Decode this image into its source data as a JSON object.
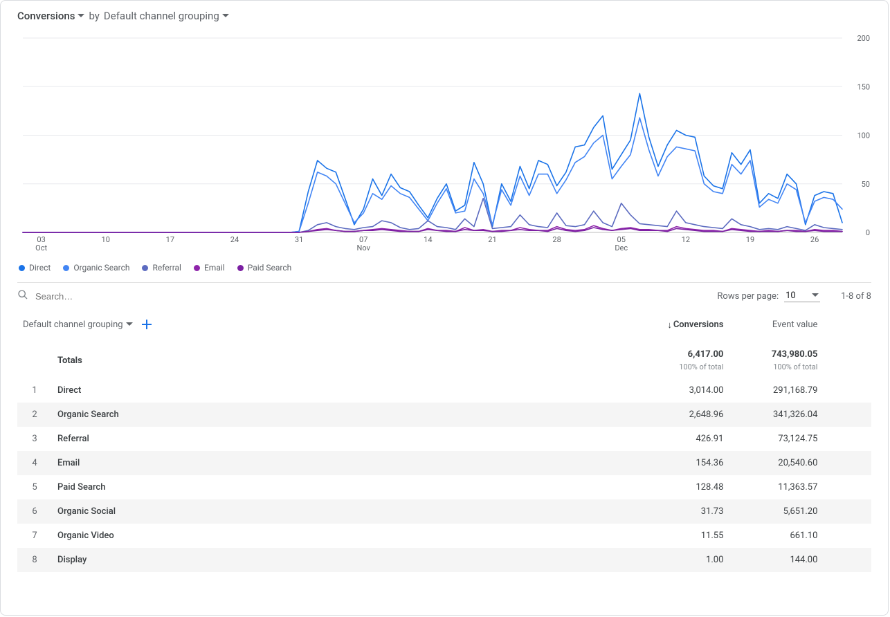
{
  "header": {
    "metric_label": "Conversions",
    "by_label": "by",
    "dimension_label": "Default channel grouping"
  },
  "chart": {
    "type": "line",
    "y_axis": {
      "min": 0,
      "max": 200,
      "ticks": [
        0,
        50,
        100,
        150,
        200
      ]
    },
    "grid_color": "#e8eaed",
    "axis_text_color": "#5f6368",
    "x_axis": {
      "start_index": 0,
      "end_index": 89,
      "ticks": [
        {
          "i": 2,
          "label": "03",
          "sublabel": "Oct"
        },
        {
          "i": 9,
          "label": "10"
        },
        {
          "i": 16,
          "label": "17"
        },
        {
          "i": 23,
          "label": "24"
        },
        {
          "i": 30,
          "label": "31"
        },
        {
          "i": 37,
          "label": "07",
          "sublabel": "Nov"
        },
        {
          "i": 44,
          "label": "14"
        },
        {
          "i": 51,
          "label": "21"
        },
        {
          "i": 58,
          "label": "28"
        },
        {
          "i": 65,
          "label": "05",
          "sublabel": "Dec"
        },
        {
          "i": 72,
          "label": "12"
        },
        {
          "i": 79,
          "label": "19"
        },
        {
          "i": 86,
          "label": "26"
        }
      ]
    },
    "series": [
      {
        "name": "Direct",
        "color": "#1a73e8",
        "values": [
          0,
          0,
          0,
          0,
          0,
          0,
          0,
          0,
          0,
          0,
          0,
          0,
          0,
          0,
          0,
          0,
          0,
          0,
          0,
          0,
          0,
          0,
          0,
          0,
          0,
          0,
          0,
          0,
          0,
          0,
          1,
          42,
          74,
          66,
          62,
          35,
          8,
          24,
          55,
          38,
          60,
          46,
          42,
          28,
          15,
          35,
          50,
          22,
          28,
          72,
          50,
          6,
          50,
          32,
          68,
          45,
          74,
          70,
          48,
          62,
          88,
          90,
          108,
          120,
          65,
          80,
          95,
          143,
          98,
          68,
          90,
          105,
          100,
          98,
          58,
          48,
          45,
          82,
          70,
          85,
          30,
          40,
          35,
          60,
          50,
          8,
          38,
          42,
          40,
          10
        ]
      },
      {
        "name": "Organic Search",
        "color": "#4285f4",
        "values": [
          0,
          0,
          0,
          0,
          0,
          0,
          0,
          0,
          0,
          0,
          0,
          0,
          0,
          0,
          0,
          0,
          0,
          0,
          0,
          0,
          0,
          0,
          0,
          0,
          0,
          0,
          0,
          0,
          0,
          0,
          1,
          30,
          62,
          58,
          50,
          30,
          10,
          20,
          40,
          34,
          48,
          40,
          36,
          24,
          12,
          30,
          45,
          20,
          22,
          55,
          40,
          8,
          44,
          28,
          58,
          38,
          60,
          60,
          40,
          54,
          72,
          78,
          92,
          100,
          55,
          68,
          80,
          118,
          85,
          58,
          78,
          88,
          86,
          84,
          50,
          42,
          40,
          70,
          60,
          74,
          26,
          34,
          30,
          50,
          44,
          10,
          32,
          36,
          34,
          24
        ]
      },
      {
        "name": "Referral",
        "color": "#5c6bc0",
        "values": [
          0,
          0,
          0,
          0,
          0,
          0,
          0,
          0,
          0,
          0,
          0,
          0,
          0,
          0,
          0,
          0,
          0,
          0,
          0,
          0,
          0,
          0,
          0,
          0,
          0,
          0,
          0,
          0,
          0,
          0,
          0,
          2,
          8,
          10,
          6,
          4,
          3,
          5,
          6,
          12,
          10,
          5,
          3,
          4,
          12,
          6,
          5,
          3,
          14,
          6,
          35,
          4,
          5,
          6,
          18,
          8,
          6,
          5,
          20,
          7,
          6,
          8,
          22,
          10,
          6,
          30,
          18,
          9,
          8,
          7,
          6,
          22,
          10,
          8,
          6,
          5,
          4,
          14,
          8,
          6,
          3,
          4,
          3,
          6,
          4,
          2,
          8,
          5,
          4,
          3
        ]
      },
      {
        "name": "Email",
        "color": "#8e24aa",
        "values": [
          0,
          0,
          0,
          0,
          0,
          0,
          0,
          0,
          0,
          0,
          0,
          0,
          0,
          0,
          0,
          0,
          0,
          0,
          0,
          0,
          0,
          0,
          0,
          0,
          0,
          0,
          0,
          0,
          0,
          0,
          0,
          1,
          3,
          4,
          2,
          1,
          1,
          2,
          3,
          4,
          3,
          2,
          1,
          1,
          4,
          2,
          2,
          1,
          5,
          2,
          3,
          1,
          2,
          2,
          5,
          3,
          2,
          2,
          6,
          3,
          2,
          3,
          7,
          4,
          2,
          4,
          5,
          3,
          3,
          2,
          2,
          6,
          4,
          3,
          2,
          2,
          1,
          4,
          3,
          2,
          1,
          2,
          1,
          2,
          2,
          1,
          3,
          2,
          2,
          1
        ]
      },
      {
        "name": "Paid Search",
        "color": "#7b1fa2",
        "values": [
          0,
          0,
          0,
          0,
          0,
          0,
          0,
          0,
          0,
          0,
          0,
          0,
          0,
          0,
          0,
          0,
          0,
          0,
          0,
          0,
          0,
          0,
          0,
          0,
          0,
          0,
          0,
          0,
          0,
          0,
          0,
          1,
          2,
          3,
          2,
          1,
          1,
          2,
          2,
          3,
          2,
          1,
          1,
          1,
          3,
          2,
          1,
          1,
          3,
          2,
          2,
          1,
          1,
          2,
          3,
          2,
          2,
          1,
          4,
          2,
          1,
          2,
          5,
          3,
          2,
          3,
          4,
          2,
          2,
          2,
          1,
          4,
          3,
          2,
          1,
          1,
          1,
          3,
          2,
          1,
          1,
          1,
          1,
          2,
          1,
          1,
          2,
          1,
          1,
          1
        ]
      }
    ],
    "legend": [
      {
        "label": "Direct",
        "color": "#1a73e8"
      },
      {
        "label": "Organic Search",
        "color": "#4285f4"
      },
      {
        "label": "Referral",
        "color": "#5c6bc0"
      },
      {
        "label": "Email",
        "color": "#8e24aa"
      },
      {
        "label": "Paid Search",
        "color": "#7b1fa2"
      }
    ]
  },
  "toolbar": {
    "search_placeholder": "Search…",
    "rows_per_page_label": "Rows per page:",
    "rows_per_page_value": "10",
    "range_label": "1-8 of 8"
  },
  "table": {
    "columns": {
      "dimension": "Default channel grouping",
      "metric1": "Conversions",
      "metric2": "Event value",
      "sort_column": "metric1",
      "sort_dir": "desc"
    },
    "totals": {
      "label": "Totals",
      "conversions": "6,417.00",
      "conversions_sub": "100% of total",
      "event_value": "743,980.05",
      "event_value_sub": "100% of total"
    },
    "rows": [
      {
        "idx": "1",
        "name": "Direct",
        "conversions": "3,014.00",
        "event_value": "291,168.79"
      },
      {
        "idx": "2",
        "name": "Organic Search",
        "conversions": "2,648.96",
        "event_value": "341,326.04"
      },
      {
        "idx": "3",
        "name": "Referral",
        "conversions": "426.91",
        "event_value": "73,124.75"
      },
      {
        "idx": "4",
        "name": "Email",
        "conversions": "154.36",
        "event_value": "20,540.60"
      },
      {
        "idx": "5",
        "name": "Paid Search",
        "conversions": "128.48",
        "event_value": "11,363.57"
      },
      {
        "idx": "6",
        "name": "Organic Social",
        "conversions": "31.73",
        "event_value": "5,651.20"
      },
      {
        "idx": "7",
        "name": "Organic Video",
        "conversions": "11.55",
        "event_value": "661.10"
      },
      {
        "idx": "8",
        "name": "Display",
        "conversions": "1.00",
        "event_value": "144.00"
      }
    ]
  },
  "colors": {
    "accent": "#1a73e8",
    "border": "#dadce0",
    "grid": "#e8eaed",
    "muted_text": "#5f6368",
    "row_alt_bg": "#f5f5f5"
  }
}
